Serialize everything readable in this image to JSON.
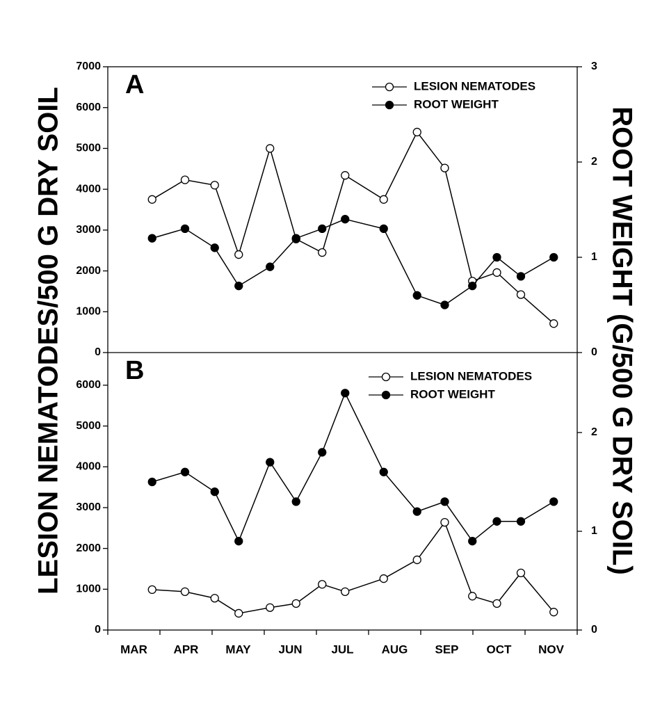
{
  "chart_data": [
    {
      "type": "line",
      "label": "A",
      "ylabel": "LESION NEMATODES/500 G DRY SOIL",
      "y2label": "ROOT WEIGHT (G/500 G DRY SOIL)",
      "xlim": [
        0,
        9
      ],
      "x": [
        0.85,
        1.48,
        2.05,
        2.51,
        3.11,
        3.61,
        4.11,
        4.55,
        5.29,
        5.93,
        6.46,
        6.99,
        7.46,
        7.92,
        8.55
      ],
      "ylim": [
        0,
        7000
      ],
      "yticks": [
        0,
        1000,
        2000,
        3000,
        4000,
        5000,
        6000,
        7000
      ],
      "y2lim": [
        0,
        3
      ],
      "y2ticks": [
        0,
        1,
        2,
        3
      ],
      "series": [
        {
          "name": "LESION NEMATODES",
          "color": "#000000",
          "marker": "open",
          "values": [
            3750,
            4230,
            4100,
            2400,
            5000,
            2780,
            2450,
            4340,
            3750,
            5400,
            4520,
            1750,
            1960,
            1420,
            710
          ]
        },
        {
          "name": "ROOT WEIGHT",
          "color": "#000000",
          "marker": "filled",
          "axis": "y2",
          "values": [
            1.2,
            1.3,
            1.1,
            0.7,
            0.9,
            1.2,
            1.3,
            1.4,
            1.3,
            0.6,
            0.5,
            0.7,
            1.0,
            0.8,
            1.0
          ]
        }
      ]
    },
    {
      "type": "line",
      "label": "B",
      "categories": [
        "MAR",
        "APR",
        "MAY",
        "JUN",
        "JUL",
        "AUG",
        "SEP",
        "OCT",
        "NOV"
      ],
      "xlim": [
        0,
        9
      ],
      "x": [
        0.85,
        1.48,
        2.05,
        2.51,
        3.11,
        3.61,
        4.11,
        4.55,
        5.29,
        5.93,
        6.46,
        6.99,
        7.46,
        7.92,
        8.55
      ],
      "ylim": [
        0,
        6800
      ],
      "yticks": [
        0,
        1000,
        2000,
        3000,
        4000,
        5000,
        6000
      ],
      "y2lim": [
        0,
        2.81
      ],
      "y2ticks": [
        0,
        1,
        2
      ],
      "series": [
        {
          "name": "LESION NEMATODES",
          "color": "#000000",
          "marker": "open",
          "values": [
            990,
            940,
            780,
            410,
            550,
            650,
            1120,
            940,
            1260,
            1720,
            2640,
            830,
            650,
            1400,
            440
          ]
        },
        {
          "name": "ROOT WEIGHT",
          "color": "#000000",
          "marker": "filled",
          "axis": "y2",
          "values": [
            1.5,
            1.6,
            1.4,
            0.9,
            1.7,
            1.3,
            1.8,
            2.4,
            1.6,
            1.2,
            1.3,
            0.9,
            1.1,
            1.1,
            1.3
          ]
        }
      ]
    }
  ]
}
